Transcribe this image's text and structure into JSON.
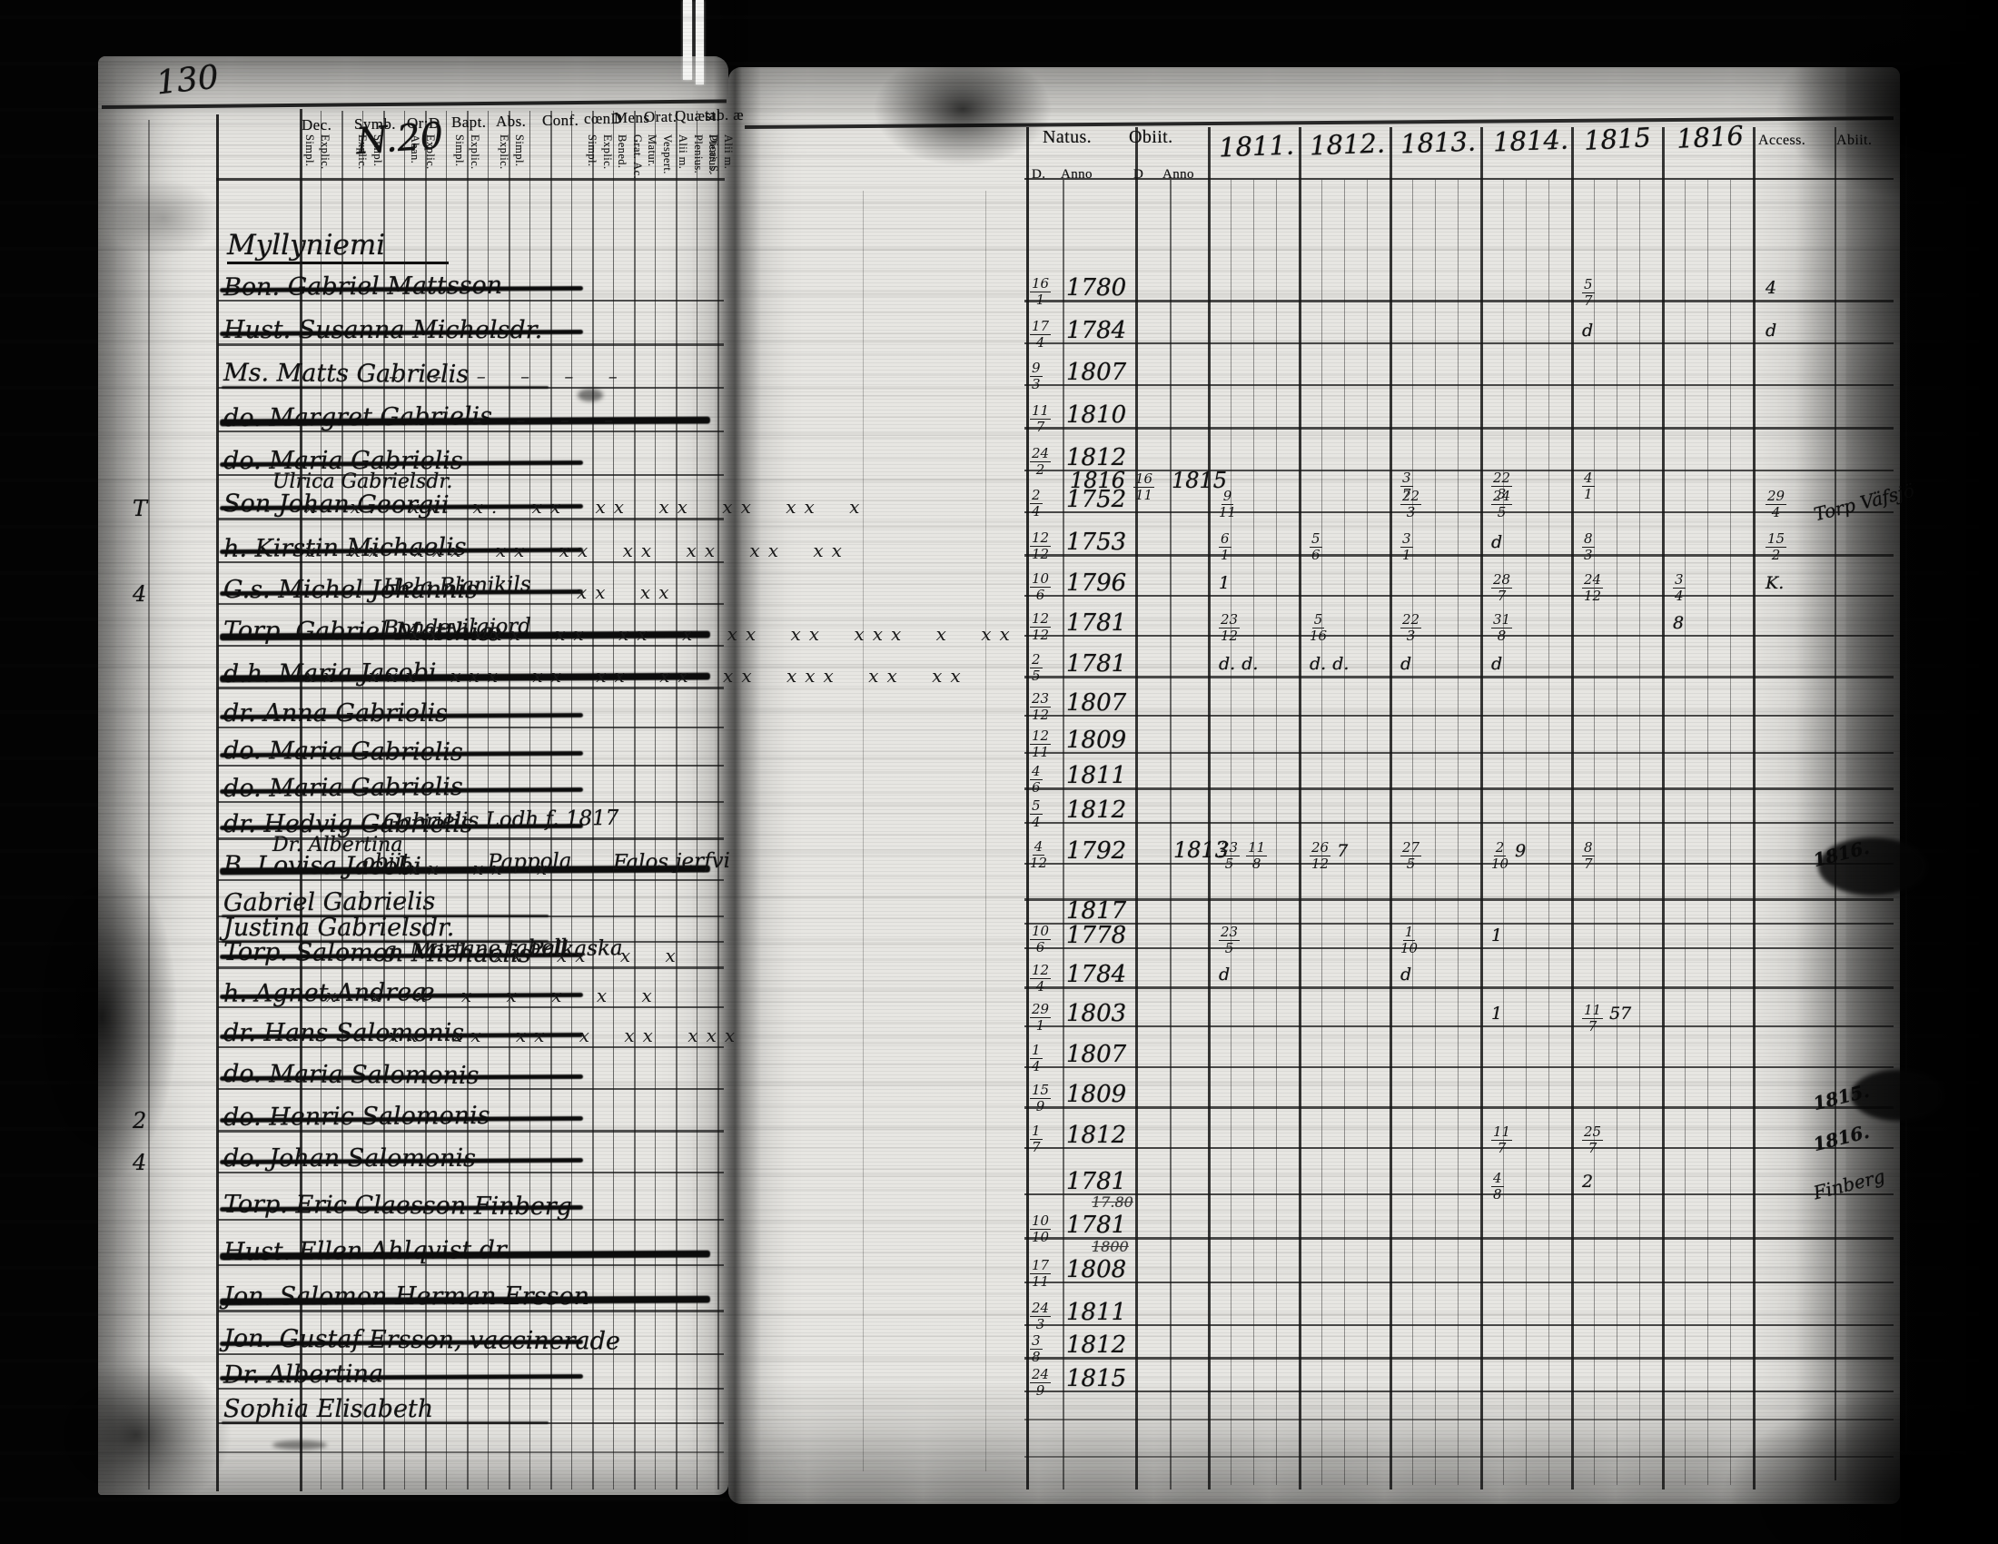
{
  "scan": {
    "folio_number": "130",
    "page_label": "N.20"
  },
  "left_page": {
    "village": "Myllyniemi",
    "columns": [
      {
        "label": "Dec.",
        "subs": [
          "Simpl.",
          "Explic."
        ]
      },
      {
        "label": "Symb.",
        "subs": [
          "Explic.",
          "Simpl."
        ]
      },
      {
        "label": "Or:D",
        "subs": [
          "Aban.",
          "Explic."
        ]
      },
      {
        "label": "Bapt.",
        "subs": [
          "Simpl.",
          "Explic."
        ]
      },
      {
        "label": "Abs.",
        "subs": [
          "Explic.",
          "Simpl."
        ]
      },
      {
        "label": "Conf.",
        "subs": []
      },
      {
        "label": "cœnD",
        "subs": [
          "Simpl.",
          "Explic."
        ]
      },
      {
        "label": "Mens",
        "subs": [
          "Bened.",
          "Grat. Ac."
        ]
      },
      {
        "label": "Orat.",
        "subs": [
          "Matur.",
          "Vespert."
        ]
      },
      {
        "label": "Quæst.",
        "subs": [
          "Alii m.",
          "Plenius.",
          "Dicas S."
        ]
      },
      {
        "label": "tab. æ",
        "subs": [
          "Plenius.",
          "Alii m."
        ]
      }
    ]
  },
  "right_page": {
    "natus_label": "Natus.",
    "obiit_label": "Obiit.",
    "sub_headers": [
      "D.",
      "Anno",
      "D",
      "Anno"
    ],
    "year_labels": [
      "1811.",
      "1812.",
      "1813.",
      "1814.",
      "1815",
      "1816"
    ],
    "access_label": "Access.",
    "abiit_label": "Abiit."
  },
  "rows": [
    {
      "name": "Bon. Gabriel Mattsson",
      "struck": true,
      "natus_d": "16/1",
      "natus_y": "1780",
      "ymarks": {
        "1815": "5/7",
        "access": "4"
      }
    },
    {
      "name": "Hust. Susanna Michelsdr.",
      "struck": true,
      "natus_d": "17/4",
      "natus_y": "1784",
      "ymarks": {
        "1815": "d",
        "access": "d"
      }
    },
    {
      "name": "Ms. Matts Gabrielis",
      "struck": false,
      "marks": {
        "start": 4,
        "text": "– –   – –    – –"
      },
      "natus_d": "9/3",
      "natus_y": "1807"
    },
    {
      "name": "do. Margret Gabrielis",
      "struck": true,
      "heavy": true,
      "marks": {
        "start": 8,
        "text": "– –   – –"
      },
      "natus_d": "11/7",
      "natus_y": "1810"
    },
    {
      "name": "do. Maria Gabrielis",
      "struck": true,
      "sub": "Ulrica Gabrielsdr.",
      "natus_d": "24/2",
      "natus_y": "1812",
      "sub_natus_y": "1816",
      "sub_obiit_d": "16/11",
      "sub_obiit_y": "1815",
      "sub_ymarks": {
        "1813": "3/7",
        "1814": "22/3",
        "1815": "4/1"
      }
    },
    {
      "name": "Son Johan Georgii",
      "struck": true,
      "margin": "T",
      "marks": {
        "start": 0,
        "text": "x x. xx x. xx xx xx xx xx x"
      },
      "natus_d": "2/4",
      "natus_y": "1752",
      "ymarks": {
        "1811": "9/11",
        "1813": "22/3",
        "1814": "24/5",
        "access": "29/4",
        "abiit": "Torp Väfsjö"
      }
    },
    {
      "name": "h. Kirstin Michaelis",
      "struck": true,
      "marks": {
        "start": 0,
        "text": "x xx xxx xx xx xx xx xx xx"
      },
      "natus_d": "12/12",
      "natus_y": "1753",
      "ymarks": {
        "1811": "6/1",
        "1812": "5/6",
        "1813": "3/1",
        "1814": "d",
        "1815": "8/3",
        "access": "15/2"
      }
    },
    {
      "name": "G.s. Michel Johannis",
      "struck": true,
      "margin": "4",
      "annotations": [
        {
          "text": "Hela Blanikils",
          "col": 4
        }
      ],
      "marks": {
        "start": 13,
        "text": "xx xx"
      },
      "natus_d": "10/6",
      "natus_y": "1796",
      "ymarks": {
        "1811": "1",
        "1814": "28/7",
        "1815": "24/12",
        "1816": "3/4",
        "access": "K."
      }
    },
    {
      "name": "Torp. Gabriel Matthiæ",
      "struck": true,
      "heavy": true,
      "annotations": [
        {
          "text": "Bondevilgjord",
          "col": 4
        }
      ],
      "marks": {
        "start": 5,
        "text": "xx xxx xx xx x xx xx xxx x xx"
      },
      "natus_d": "12/12",
      "natus_y": "1781",
      "ymarks": {
        "1811": "23/12",
        "1812": "5/16",
        "1813": "22/3",
        "1814": "31/8",
        "1816": "8"
      }
    },
    {
      "name": "d.h. Maria Jacobi",
      "struck": true,
      "heavy": true,
      "marks": {
        "start": 0,
        "text": "xx xxx xxx xx xx xx xx xxx xx xx"
      },
      "natus_d": "2/5",
      "natus_y": "1781",
      "ymarks": {
        "1811": "d. d.",
        "1812": "d. d.",
        "1813": "d",
        "1814": "d"
      }
    },
    {
      "name": "dr. Anna Gabrielis",
      "struck": true,
      "natus_d": "23/12",
      "natus_y": "1807"
    },
    {
      "name": "do. Maria Gabrielis",
      "struck": true,
      "natus_d": "12/11",
      "natus_y": "1809"
    },
    {
      "name": "do. Maria Gabrielis",
      "struck": true,
      "natus_d": "4/6",
      "natus_y": "1811"
    },
    {
      "name": "dr. Hedvig Gabrielis",
      "struck": true,
      "sub": "Dr. Albertina",
      "annotations": [
        {
          "text": "Gabrielis Lodh f. 1817",
          "col": 4
        }
      ],
      "natus_d": "5/4",
      "natus_y": "1812"
    },
    {
      "name": "B. Lovisa Jacobi",
      "struck": true,
      "heavy": true,
      "annotations": [
        {
          "text": "obiit",
          "col": 3
        },
        {
          "text": "Pappola",
          "col": 9
        },
        {
          "text": "Falos jerfvi",
          "col": 15
        }
      ],
      "marks": {
        "start": 5,
        "text": "xx xx x"
      },
      "natus_d": "4/12",
      "natus_y": "1792",
      "obiit_y": "1813",
      "ymarks": {
        "1811": "23/5 11/8",
        "1812": "26/12 7",
        "1813": "27/5",
        "1814": "2/10 9",
        "1815": "8/7",
        "abiit": "1816."
      }
    },
    {
      "name": "Gabriel Gabrielis",
      "struck": false
    },
    {
      "name": "Justina Gabrielsdr.",
      "struck": false,
      "natus_y": "1817"
    },
    {
      "name": "Torp. Salomon Michaelis",
      "struck": true,
      "annotations": [
        {
          "text": "g. Mortane tabell",
          "col": 4
        },
        {
          "text": "Palkaska",
          "col": 11
        }
      ],
      "marks": {
        "start": 9,
        "text": "xx xx  x x"
      },
      "natus_d": "10/6",
      "natus_y": "1778",
      "ymarks": {
        "1811": "23/5",
        "1813": "1/10",
        "1814": "1"
      }
    },
    {
      "name": "h. Agnet Andreæ",
      "struck": true,
      "marks": {
        "start": 1,
        "text": "x x   x x   x x   x x"
      },
      "natus_d": "12/4",
      "natus_y": "1784",
      "ymarks": {
        "1811": "d",
        "1813": "d"
      }
    },
    {
      "name": "dr. Hans Salomonis",
      "struck": true,
      "marks": {
        "start": 4,
        "text": "xx  xx xx  x xx xxx"
      },
      "natus_d": "29/1",
      "natus_y": "1803",
      "ymarks": {
        "1814": "1",
        "1815": "11/7 57"
      }
    },
    {
      "name": "do. Maria Salomonis",
      "struck": true,
      "natus_d": "1/4",
      "natus_y": "1807"
    },
    {
      "name": "do. Henric Salomonis",
      "struck": true,
      "margin": "2",
      "natus_d": "15/9",
      "natus_y": "1809",
      "ymarks": {
        "abiit": "1815."
      }
    },
    {
      "name": "do. Johan Salomonis",
      "struck": true,
      "margin": "4",
      "natus_d": "1/7",
      "natus_y": "1812",
      "ymarks": {
        "1814": "11/7",
        "1815": "25/7",
        "abiit": "1816."
      }
    },
    {
      "name": "Torp. Eric Claesson Finberg",
      "struck": true,
      "natus_y": "1781",
      "ymarks": {
        "1814": "4/8",
        "1815": "2",
        "abiit": "Finberg"
      }
    },
    {
      "name": "Hust. Ellen Ahlqvist dr.",
      "struck": true,
      "heavy": true,
      "natus_d": "10/10",
      "natus_y": "1781",
      "natus_note": "17.80"
    },
    {
      "name": "Jon. Salomon Herman Ersson",
      "struck": true,
      "heavy": true,
      "natus_d": "17/11",
      "natus_y": "1808",
      "natus_note": "1800"
    },
    {
      "name": "Jon. Gustaf Ersson, vaccinerade",
      "struck": true,
      "natus_d": "24/3",
      "natus_y": "1811"
    },
    {
      "name": "Dr. Albertina",
      "struck": true,
      "natus_d": "3/8",
      "natus_y": "1812"
    },
    {
      "name": "Sophia Elisabeth",
      "struck": false,
      "natus_d": "24/9",
      "natus_y": "1815"
    }
  ]
}
